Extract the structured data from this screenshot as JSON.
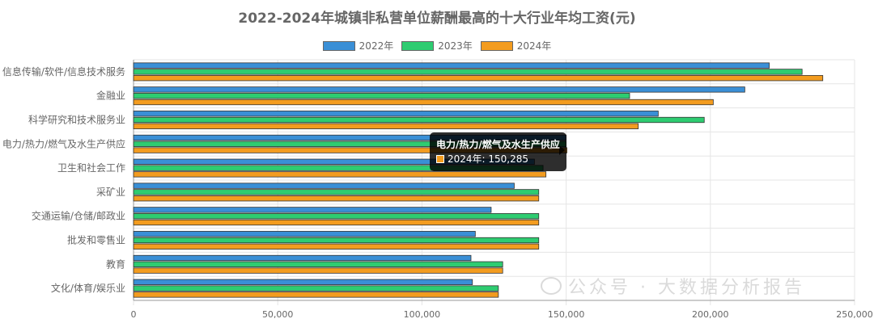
{
  "chart_data": {
    "type": "bar",
    "orientation": "horizontal",
    "title": "2022-2024年城镇非私营单位薪酬最高的十大行业年均工资(元)",
    "categories": [
      "信息传输/软件/信息技术服务",
      "金融业",
      "科学研究和技术服务业",
      "电力/热力/燃气及水生产供应",
      "卫生和社会工作",
      "采矿业",
      "交通运输/仓储/邮政业",
      "批发和零售业",
      "教育",
      "文化/体育/娱乐业"
    ],
    "series": [
      {
        "name": "2022年",
        "color": "#3a8fd6",
        "values": [
          220418,
          211938,
          181922,
          150000,
          139000,
          132000,
          124000,
          118500,
          117000,
          117500
        ]
      },
      {
        "name": "2023年",
        "color": "#2ecc71",
        "values": [
          231810,
          172000,
          197877,
          150000,
          142000,
          140500,
          140500,
          140500,
          128000,
          126500
        ]
      },
      {
        "name": "2024年",
        "color": "#f39c1f",
        "values": [
          238979,
          201000,
          175000,
          150285,
          143000,
          140500,
          140500,
          140500,
          128000,
          126500
        ]
      }
    ],
    "xlim": [
      0,
      250000
    ],
    "x_ticks": [
      "0",
      "50,000",
      "100,000",
      "150,000",
      "200,000",
      "250,000"
    ],
    "grid": true,
    "legend_position": "top"
  },
  "tooltip": {
    "title": "电力/热力/燃气及水生产供应",
    "text": "2024年: 150,285",
    "color": "#f39c1f"
  },
  "watermark": {
    "text": "公众号 · 大数据分析报告",
    "icon": "wechat-icon"
  }
}
